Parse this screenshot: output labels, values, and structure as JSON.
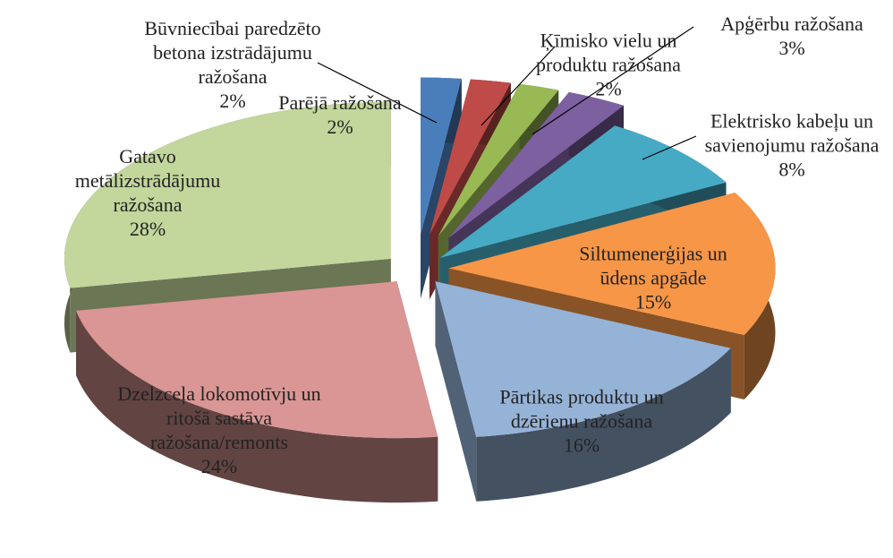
{
  "chart_data": {
    "type": "pie3d",
    "categories": [
      "Parējā ražošana",
      "Būvniecībai paredzēto betona izstrādājumu ražošana",
      "Ķīmisko vielu un produktu ražošana",
      "Apģērbu ražošana",
      "Elektrisko kabeļu un savienojumu ražošana",
      "Siltumenerģijas un ūdens apgāde",
      "Pārtikas produktu un dzērienu ražošana",
      "Dzelzceļa lokomotīvju un ritošā sastāva ražošana/remonts",
      "Gatavo metālizstrādājumu ražošana"
    ],
    "values": [
      2,
      2,
      2,
      3,
      8,
      15,
      16,
      24,
      28
    ],
    "value_labels": [
      "2%",
      "2%",
      "2%",
      "3%",
      "8%",
      "15%",
      "16%",
      "24%",
      "28%"
    ],
    "colors": [
      "#4a7ebb",
      "#be4b48",
      "#98b954",
      "#7d60a0",
      "#46aac5",
      "#f79646",
      "#95b3d7",
      "#d99694",
      "#c3d69b"
    ]
  }
}
